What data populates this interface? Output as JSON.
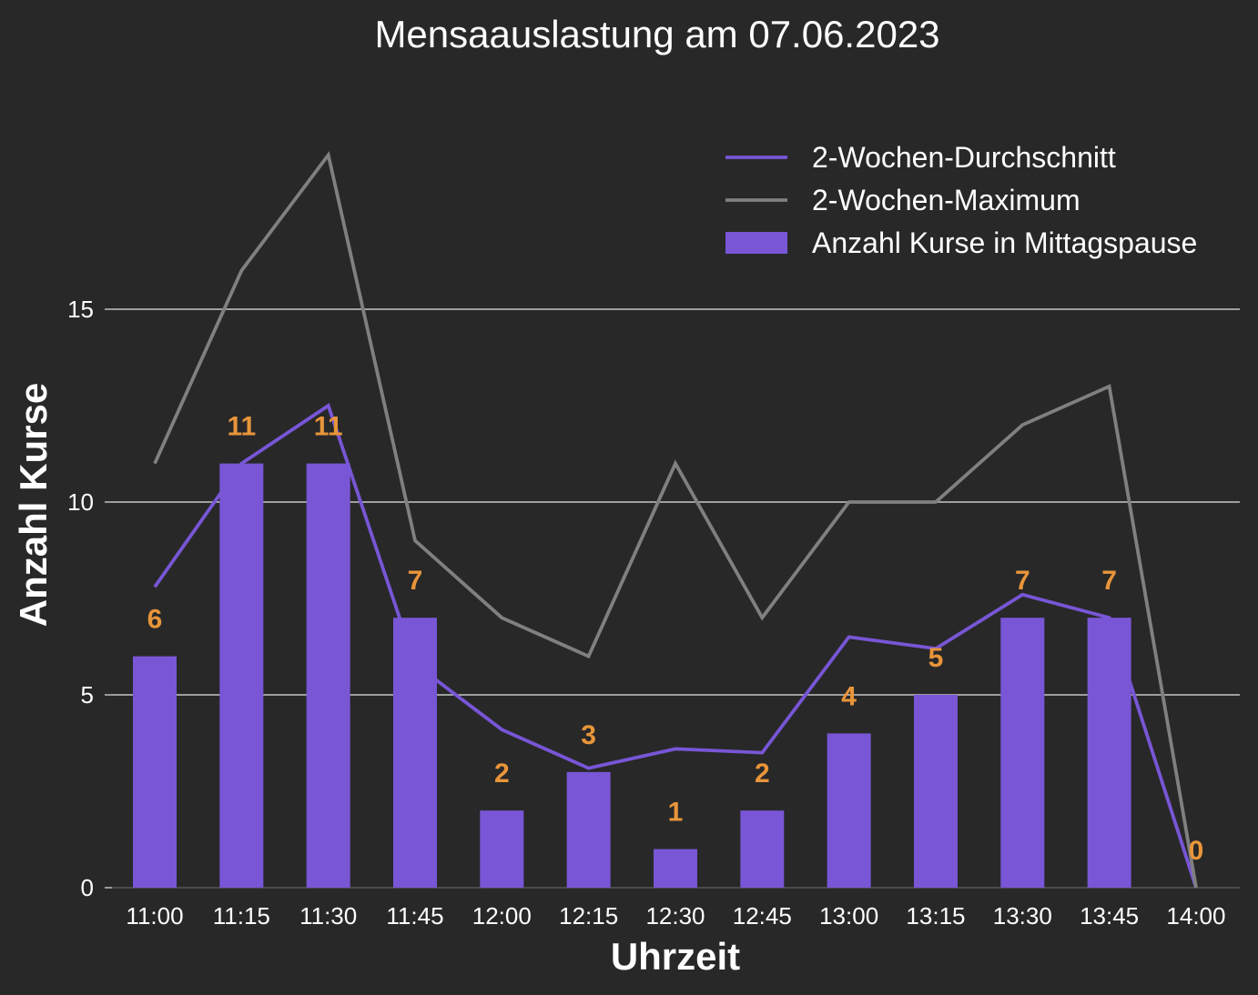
{
  "chart_data": {
    "type": "bar",
    "title": "Mensaauslastung am 07.06.2023",
    "xlabel": "Uhrzeit",
    "ylabel": "Anzahl Kurse",
    "categories": [
      "11:00",
      "11:15",
      "11:30",
      "11:45",
      "12:00",
      "12:15",
      "12:30",
      "12:45",
      "13:00",
      "13:15",
      "13:30",
      "13:45",
      "14:00"
    ],
    "ylim": [
      0,
      22.5
    ],
    "yticks": [
      0,
      5,
      10,
      15
    ],
    "grid": true,
    "legend_position": "top-right",
    "series": [
      {
        "name": "Anzahl Kurse in Mittagspause",
        "type": "bar",
        "color": "#7856d6",
        "values": [
          6,
          11,
          11,
          7,
          2,
          3,
          1,
          2,
          4,
          5,
          7,
          7,
          0
        ],
        "data_labels": [
          "6",
          "11",
          "11",
          "7",
          "2",
          "3",
          "1",
          "2",
          "4",
          "5",
          "7",
          "7",
          "0"
        ]
      },
      {
        "name": "2-Wochen-Durchschnitt",
        "type": "line",
        "color": "#7856d6",
        "values": [
          7.8,
          11.0,
          12.5,
          5.8,
          4.1,
          3.1,
          3.6,
          3.5,
          6.5,
          6.2,
          7.6,
          7.0,
          0.0
        ]
      },
      {
        "name": "2-Wochen-Maximum",
        "type": "line",
        "color": "#808080",
        "values": [
          11,
          16,
          19,
          9,
          7,
          6,
          11,
          7,
          10,
          10,
          12,
          13,
          0
        ]
      }
    ],
    "legend_order": [
      "2-Wochen-Durchschnitt",
      "2-Wochen-Maximum",
      "Anzahl Kurse in Mittagspause"
    ],
    "colors": {
      "background": "#282828",
      "text": "#ffffff",
      "grid": "#e6e6e6",
      "data_label": "#e8953a"
    }
  }
}
